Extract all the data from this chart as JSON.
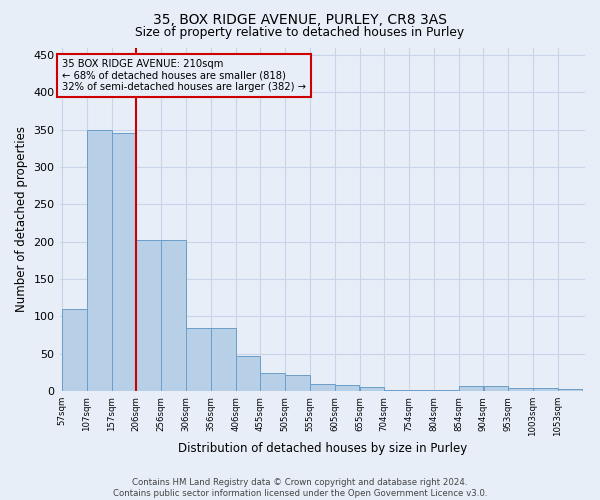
{
  "title1": "35, BOX RIDGE AVENUE, PURLEY, CR8 3AS",
  "title2": "Size of property relative to detached houses in Purley",
  "xlabel": "Distribution of detached houses by size in Purley",
  "ylabel": "Number of detached properties",
  "footer1": "Contains HM Land Registry data © Crown copyright and database right 2024.",
  "footer2": "Contains public sector information licensed under the Open Government Licence v3.0.",
  "bar_lefts": [
    57,
    107,
    157,
    206,
    256,
    306,
    356,
    406,
    455,
    505,
    555,
    605,
    655,
    704,
    754,
    804,
    854,
    904,
    953,
    1003,
    1053
  ],
  "bar_widths": [
    50,
    50,
    49,
    50,
    50,
    50,
    50,
    49,
    50,
    50,
    50,
    50,
    49,
    50,
    50,
    50,
    50,
    49,
    50,
    50,
    50
  ],
  "bar_heights": [
    110,
    350,
    345,
    203,
    203,
    85,
    85,
    47,
    24,
    22,
    10,
    8,
    6,
    1,
    1,
    1,
    7,
    7,
    4,
    4,
    3
  ],
  "bar_color": "#b8cfe8",
  "bar_edge_color": "#6a9ec8",
  "grid_color": "#c8d4e8",
  "bg_color": "#e8eef8",
  "vline_x": 206,
  "vline_color": "#cc0000",
  "annot_line1": "35 BOX RIDGE AVENUE: 210sqm",
  "annot_line2": "← 68% of detached houses are smaller (818)",
  "annot_line3": "32% of semi-detached houses are larger (382) →",
  "annotation_box_color": "#cc0000",
  "ylim": [
    0,
    460
  ],
  "yticks": [
    0,
    50,
    100,
    150,
    200,
    250,
    300,
    350,
    400,
    450
  ],
  "tick_labels": [
    "57sqm",
    "107sqm",
    "157sqm",
    "206sqm",
    "256sqm",
    "306sqm",
    "356sqm",
    "406sqm",
    "455sqm",
    "505sqm",
    "555sqm",
    "605sqm",
    "655sqm",
    "704sqm",
    "754sqm",
    "804sqm",
    "854sqm",
    "904sqm",
    "953sqm",
    "1003sqm",
    "1053sqm"
  ]
}
